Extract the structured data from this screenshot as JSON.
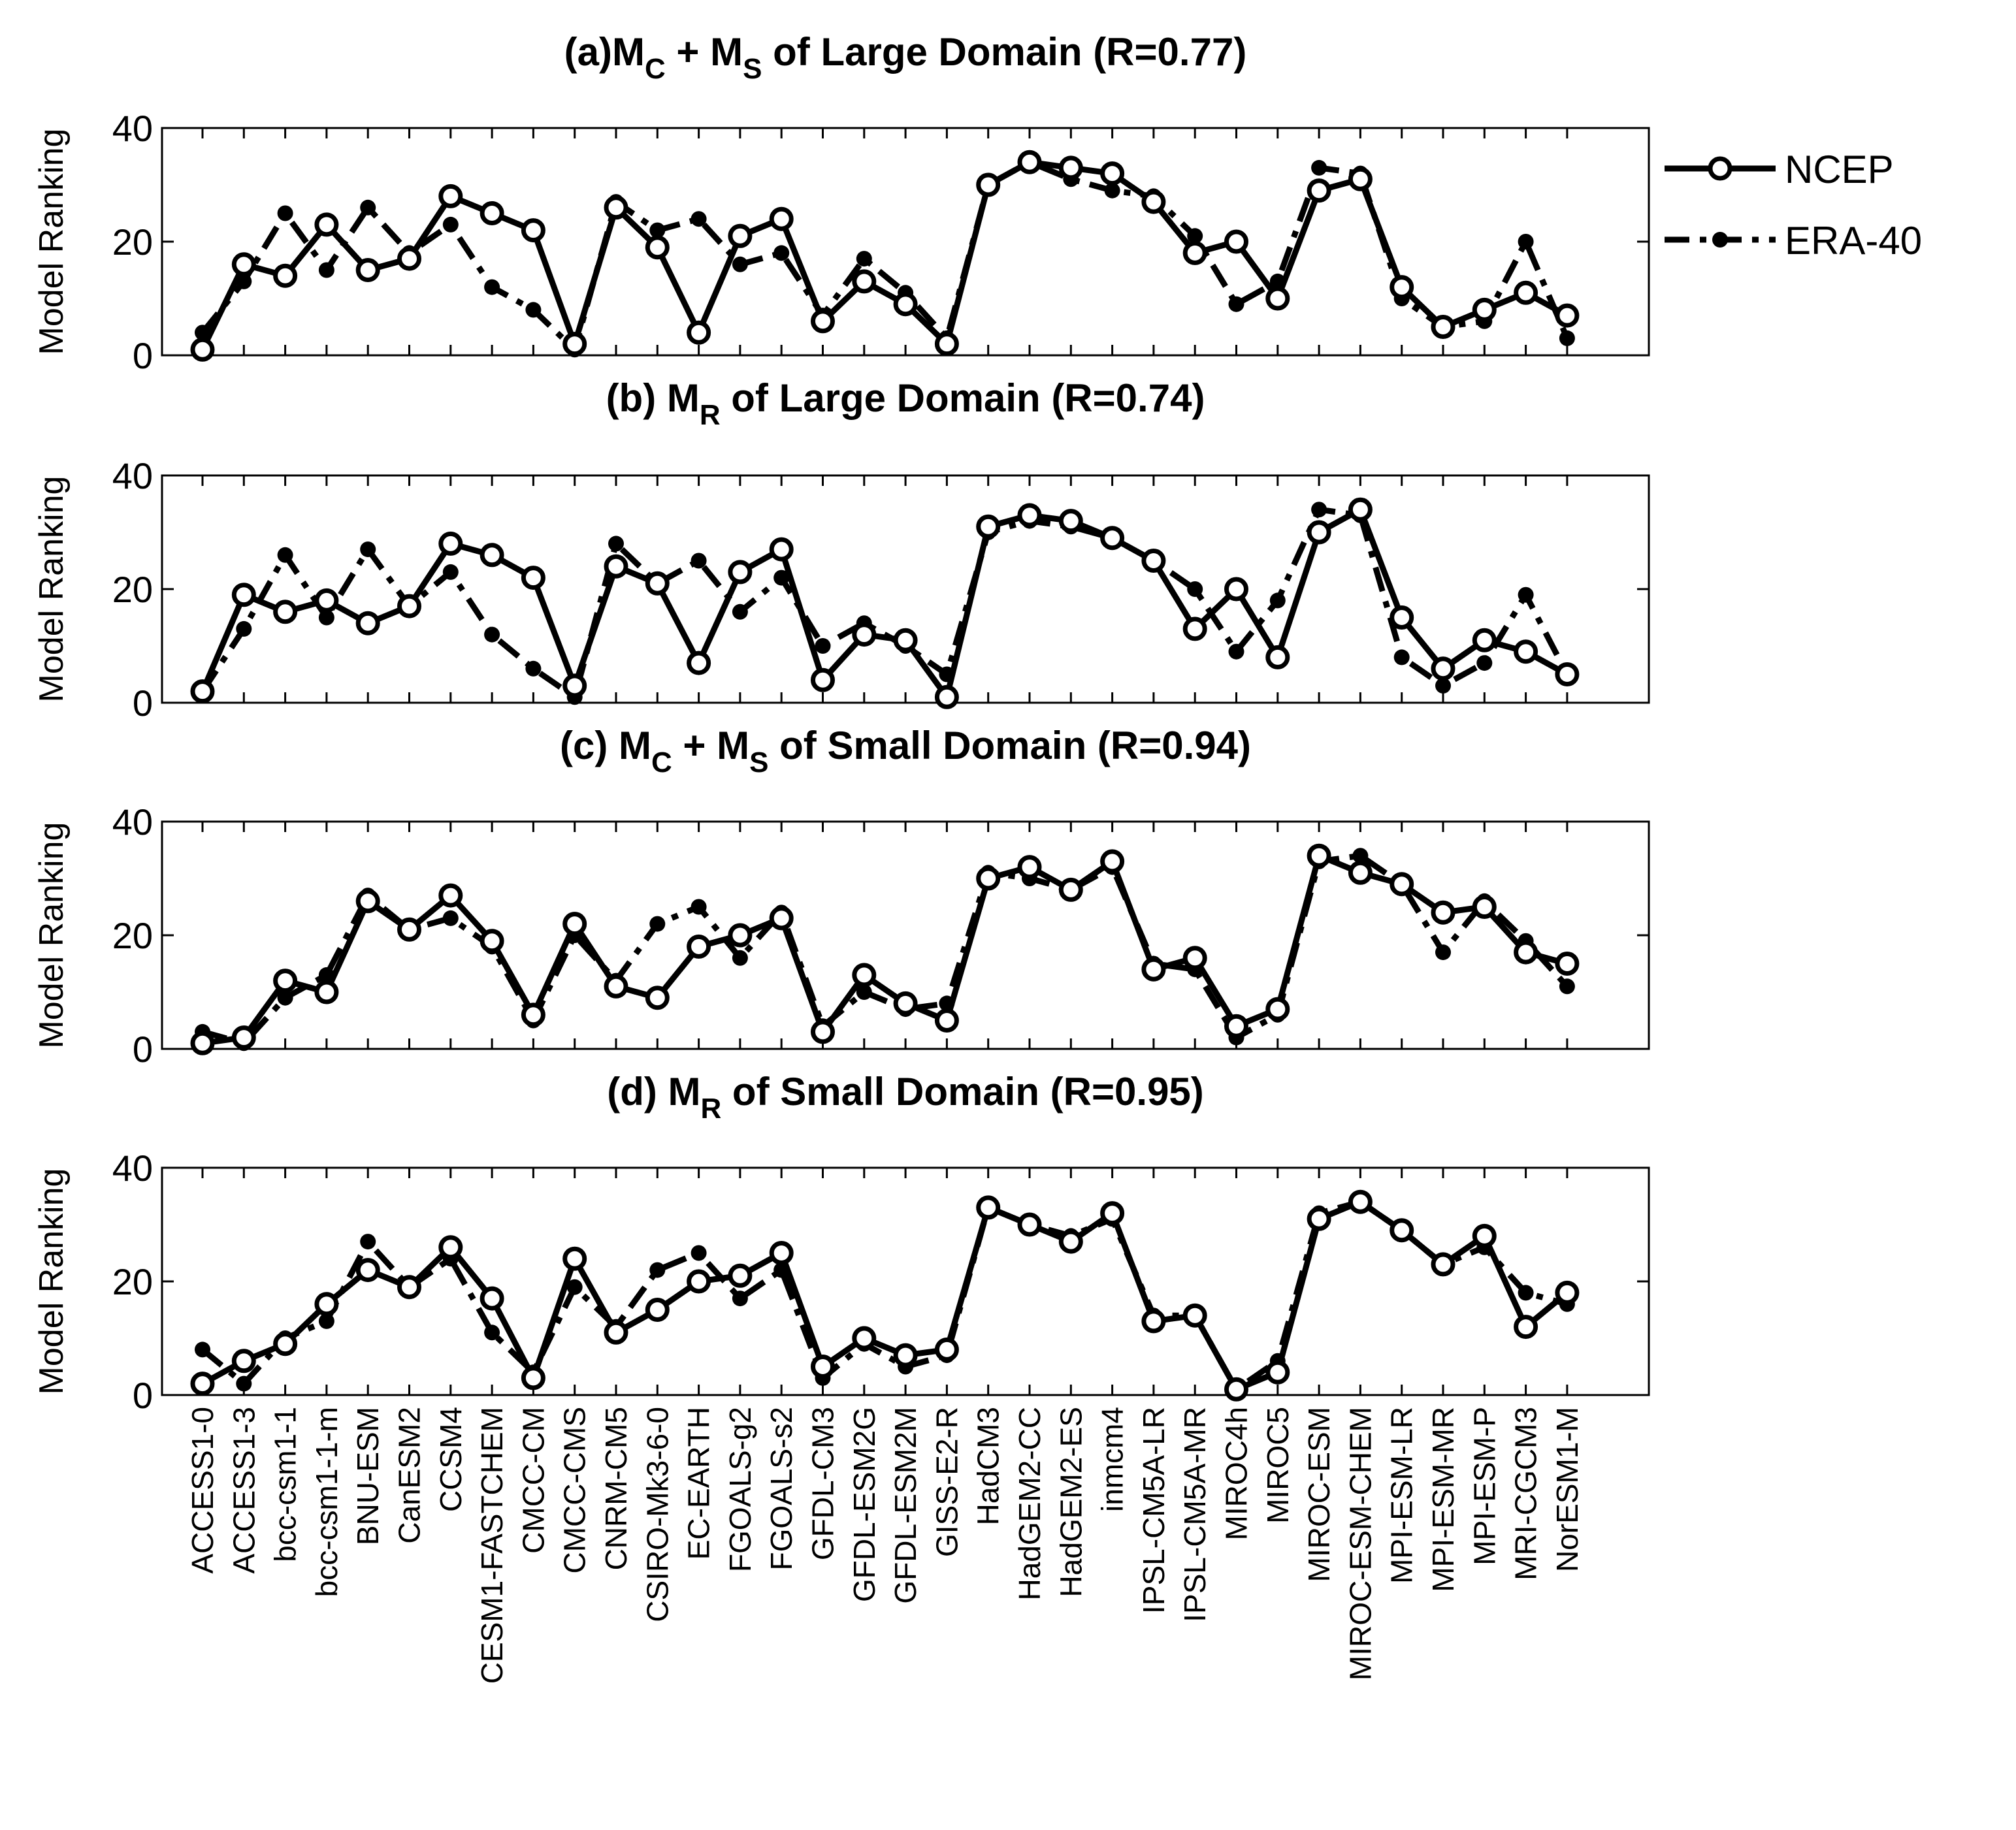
{
  "chart_data": {
    "type": "line",
    "categories": [
      "ACCESS1-0",
      "ACCESS1-3",
      "bcc-csm1-1",
      "bcc-csm1-1-m",
      "BNU-ESM",
      "CanESM2",
      "CCSM4",
      "CESM1-FASTCHEM",
      "CMCC-CM",
      "CMCC-CMS",
      "CNRM-CM5",
      "CSIRO-Mk3-6-0",
      "EC-EARTH",
      "FGOALS-g2",
      "FGOALS-s2",
      "GFDL-CM3",
      "GFDL-ESM2G",
      "GFDL-ESM2M",
      "GISS-E2-R",
      "HadCM3",
      "HadGEM2-CC",
      "HadGEM2-ES",
      "inmcm4",
      "IPSL-CM5A-LR",
      "IPSL-CM5A-MR",
      "MIROC4h",
      "MIROC5",
      "MIROC-ESM",
      "MIROC-ESM-CHEM",
      "MPI-ESM-LR",
      "MPI-ESM-MR",
      "MPI-ESM-P",
      "MRI-CGCM3",
      "NorESM1-M"
    ],
    "ylabel": "Model Ranking",
    "ylim": [
      0,
      40
    ],
    "yticks": [
      "0",
      "20",
      "40"
    ],
    "legend": {
      "placement": "outside-top-right",
      "entries": [
        {
          "name": "NCEP",
          "style": "solid",
          "marker": "open-circle"
        },
        {
          "name": "ERA-40",
          "style": "dash-dot",
          "marker": "filled-dot"
        }
      ]
    },
    "panels": [
      {
        "title_prefix": "(a)M",
        "sub1": "C",
        "mid": " + M",
        "sub2": "S",
        "title_suffix": " of Large Domain (R=0.77)",
        "series": [
          {
            "name": "NCEP",
            "values": [
              1,
              16,
              14,
              23,
              15,
              17,
              28,
              25,
              22,
              2,
              26,
              19,
              4,
              21,
              24,
              6,
              13,
              9,
              2,
              30,
              34,
              33,
              32,
              27,
              18,
              20,
              10,
              29,
              31,
              12,
              5,
              8,
              11,
              7
            ]
          },
          {
            "name": "ERA-40",
            "values": [
              4,
              13,
              25,
              15,
              26,
              18,
              23,
              12,
              8,
              1,
              27,
              22,
              24,
              16,
              18,
              7,
              17,
              11,
              3,
              30,
              34,
              31,
              29,
              28,
              21,
              9,
              13,
              33,
              32,
              10,
              5,
              6,
              20,
              3
            ]
          }
        ]
      },
      {
        "title_prefix": "(b) M",
        "sub1": "R",
        "mid": "",
        "sub2": "",
        "title_suffix": " of Large Domain (R=0.74)",
        "series": [
          {
            "name": "NCEP",
            "values": [
              2,
              19,
              16,
              18,
              14,
              17,
              28,
              26,
              22,
              3,
              24,
              21,
              7,
              23,
              27,
              4,
              12,
              11,
              1,
              31,
              33,
              32,
              29,
              25,
              13,
              20,
              8,
              30,
              34,
              15,
              6,
              11,
              9,
              5
            ]
          },
          {
            "name": "ERA-40",
            "values": [
              2,
              13,
              26,
              15,
              27,
              17,
              23,
              12,
              6,
              1,
              28,
              21,
              25,
              16,
              22,
              10,
              14,
              10,
              5,
              30,
              32,
              31,
              29,
              25,
              20,
              9,
              18,
              34,
              33,
              8,
              3,
              7,
              19,
              5
            ]
          }
        ]
      },
      {
        "title_prefix": "(c) M",
        "sub1": "C",
        "mid": " + M",
        "sub2": "S",
        "title_suffix": " of Small Domain (R=0.94)",
        "series": [
          {
            "name": "NCEP",
            "values": [
              1,
              2,
              12,
              10,
              26,
              21,
              27,
              19,
              6,
              22,
              11,
              9,
              18,
              20,
              23,
              3,
              13,
              8,
              5,
              30,
              32,
              28,
              33,
              14,
              16,
              4,
              7,
              34,
              31,
              29,
              24,
              25,
              17,
              15
            ]
          },
          {
            "name": "ERA-40",
            "values": [
              3,
              1,
              9,
              13,
              27,
              21,
              23,
              18,
              5,
              20,
              12,
              22,
              25,
              16,
              24,
              4,
              10,
              7,
              8,
              31,
              30,
              28,
              32,
              15,
              14,
              2,
              6,
              33,
              34,
              29,
              17,
              26,
              19,
              11
            ]
          }
        ]
      },
      {
        "title_prefix": "(d) M",
        "sub1": "R",
        "mid": "",
        "sub2": "",
        "title_suffix": " of Small Domain (R=0.95)",
        "series": [
          {
            "name": "NCEP",
            "values": [
              2,
              6,
              9,
              16,
              22,
              19,
              26,
              17,
              3,
              24,
              11,
              15,
              20,
              21,
              25,
              5,
              10,
              7,
              8,
              33,
              30,
              27,
              32,
              13,
              14,
              1,
              4,
              31,
              34,
              29,
              23,
              28,
              12,
              18
            ]
          },
          {
            "name": "ERA-40",
            "values": [
              8,
              2,
              10,
              13,
              27,
              19,
              24,
              11,
              4,
              19,
              12,
              22,
              25,
              17,
              22,
              3,
              9,
              5,
              7,
              33,
              30,
              28,
              31,
              14,
              14,
              1,
              6,
              32,
              34,
              29,
              23,
              26,
              18,
              16
            ]
          }
        ]
      }
    ]
  }
}
